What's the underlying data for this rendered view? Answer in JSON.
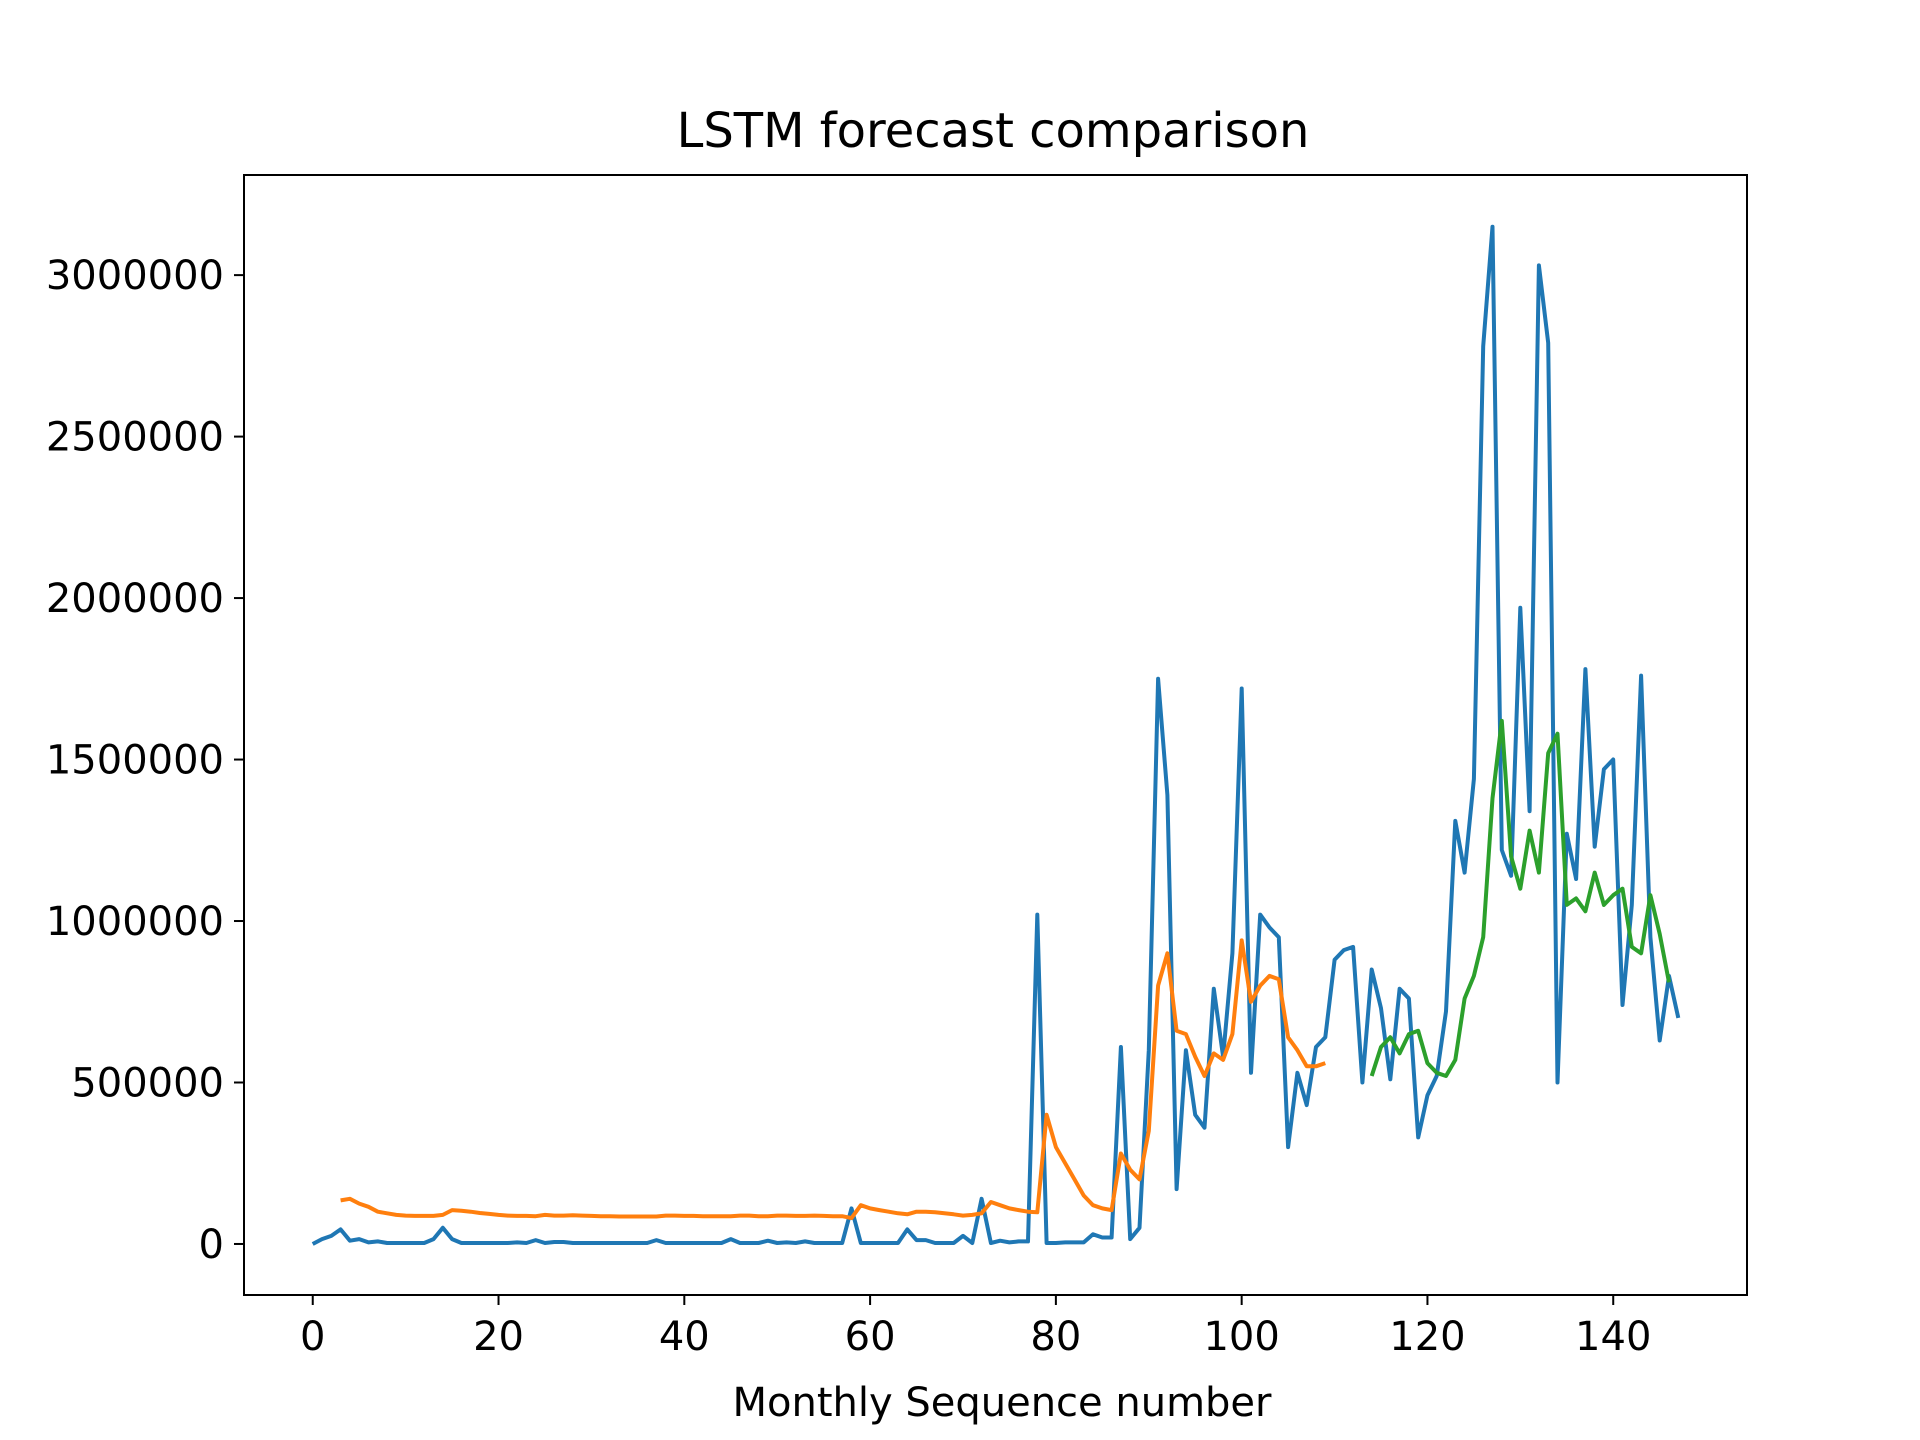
{
  "chart_data": {
    "type": "line",
    "title": "LSTM forecast comparison",
    "xlabel": "Monthly Sequence number",
    "ylabel": "",
    "xlim": [
      -7.4,
      154.4
    ],
    "ylim": [
      -158000,
      3310000
    ],
    "xticks": [
      0,
      20,
      40,
      60,
      80,
      100,
      120,
      140
    ],
    "yticks": [
      0,
      500000,
      1000000,
      1500000,
      2000000,
      2500000,
      3000000
    ],
    "grid": false,
    "legend": null,
    "series": [
      {
        "color": "#1f77b4",
        "x": [
          0,
          1,
          2,
          3,
          4,
          5,
          6,
          7,
          8,
          9,
          10,
          11,
          12,
          13,
          14,
          15,
          16,
          17,
          18,
          19,
          20,
          21,
          22,
          23,
          24,
          25,
          26,
          27,
          28,
          29,
          30,
          31,
          32,
          33,
          34,
          35,
          36,
          37,
          38,
          39,
          40,
          41,
          42,
          43,
          44,
          45,
          46,
          47,
          48,
          49,
          50,
          51,
          52,
          53,
          54,
          55,
          56,
          57,
          58,
          59,
          60,
          61,
          62,
          63,
          64,
          65,
          66,
          67,
          68,
          69,
          70,
          71,
          72,
          73,
          74,
          75,
          76,
          77,
          78,
          79,
          80,
          81,
          82,
          83,
          84,
          85,
          86,
          87,
          88,
          89,
          90,
          91,
          92,
          93,
          94,
          95,
          96,
          97,
          98,
          99,
          100,
          101,
          102,
          103,
          104,
          105,
          106,
          107,
          108,
          109,
          110,
          111,
          112,
          113,
          114,
          115,
          116,
          117,
          118,
          119,
          120,
          121,
          122,
          123,
          124,
          125,
          126,
          127,
          128,
          129,
          130,
          131,
          132,
          133,
          134,
          135,
          136,
          137,
          138,
          139,
          140,
          141,
          142,
          143,
          144,
          145,
          146,
          147
        ],
        "y": [
          0,
          15000,
          25000,
          45000,
          10000,
          15000,
          5000,
          8000,
          3000,
          3000,
          3000,
          3000,
          3000,
          15000,
          50000,
          15000,
          3000,
          3000,
          3000,
          3000,
          3000,
          3000,
          5000,
          3000,
          12000,
          3000,
          6000,
          6000,
          3000,
          3000,
          3000,
          3000,
          3000,
          3000,
          3000,
          3000,
          3000,
          12000,
          3000,
          3000,
          3000,
          3000,
          3000,
          3000,
          3000,
          15000,
          3000,
          3000,
          3000,
          10000,
          3000,
          5000,
          3000,
          8000,
          3000,
          3000,
          3000,
          3000,
          110000,
          3000,
          3000,
          3000,
          3000,
          3000,
          45000,
          12000,
          12000,
          3000,
          3000,
          3000,
          25000,
          3000,
          140000,
          3000,
          10000,
          5000,
          8000,
          8000,
          1020000,
          3000,
          3000,
          5000,
          5000,
          5000,
          30000,
          20000,
          20000,
          610000,
          15000,
          50000,
          600000,
          1750000,
          1390000,
          170000,
          600000,
          400000,
          360000,
          790000,
          580000,
          900000,
          1720000,
          530000,
          1020000,
          980000,
          950000,
          300000,
          530000,
          430000,
          610000,
          640000,
          880000,
          910000,
          920000,
          500000,
          850000,
          730000,
          510000,
          790000,
          760000,
          330000,
          460000,
          520000,
          720000,
          1310000,
          1150000,
          1440000,
          2780000,
          3150000,
          1220000,
          1140000,
          1970000,
          1340000,
          3030000,
          2790000,
          500000,
          1270000,
          1130000,
          1780000,
          1230000,
          1470000,
          1500000,
          740000,
          1050000,
          1760000,
          950000,
          630000,
          830000,
          700000
        ]
      },
      {
        "color": "#ff7f0e",
        "x": [
          3,
          4,
          5,
          6,
          7,
          8,
          9,
          10,
          11,
          12,
          13,
          14,
          15,
          16,
          17,
          18,
          19,
          20,
          21,
          22,
          23,
          24,
          25,
          26,
          27,
          28,
          29,
          30,
          31,
          32,
          33,
          34,
          35,
          36,
          37,
          38,
          39,
          40,
          41,
          42,
          43,
          44,
          45,
          46,
          47,
          48,
          49,
          50,
          51,
          52,
          53,
          54,
          55,
          56,
          57,
          58,
          59,
          60,
          61,
          62,
          63,
          64,
          65,
          66,
          67,
          68,
          69,
          70,
          71,
          72,
          73,
          74,
          75,
          76,
          77,
          78,
          79,
          80,
          81,
          82,
          83,
          84,
          85,
          86,
          87,
          88,
          89,
          90,
          91,
          92,
          93,
          94,
          95,
          96,
          97,
          98,
          99,
          100,
          101,
          102,
          103,
          104,
          105,
          106,
          107,
          108,
          109
        ],
        "y": [
          135000,
          140000,
          125000,
          115000,
          100000,
          95000,
          90000,
          88000,
          87000,
          87000,
          87000,
          90000,
          105000,
          103000,
          100000,
          96000,
          93000,
          90000,
          88000,
          87000,
          87000,
          86000,
          90000,
          88000,
          88000,
          89000,
          88000,
          87000,
          86000,
          86000,
          85000,
          85000,
          85000,
          85000,
          85000,
          88000,
          88000,
          87000,
          87000,
          86000,
          86000,
          86000,
          86000,
          88000,
          88000,
          86000,
          86000,
          88000,
          88000,
          87000,
          87000,
          88000,
          87000,
          86000,
          86000,
          80000,
          120000,
          110000,
          105000,
          100000,
          95000,
          92000,
          100000,
          100000,
          98000,
          95000,
          92000,
          88000,
          90000,
          95000,
          130000,
          120000,
          110000,
          105000,
          100000,
          98000,
          400000,
          300000,
          250000,
          200000,
          150000,
          120000,
          110000,
          105000,
          280000,
          230000,
          200000,
          350000,
          800000,
          900000,
          660000,
          650000,
          580000,
          520000,
          590000,
          570000,
          650000,
          940000,
          750000,
          800000,
          830000,
          820000,
          640000,
          600000,
          550000,
          550000,
          560000
        ]
      },
      {
        "color": "#2ca02c",
        "x": [
          114,
          115,
          116,
          117,
          118,
          119,
          120,
          121,
          122,
          123,
          124,
          125,
          126,
          127,
          128,
          129,
          130,
          131,
          132,
          133,
          134,
          135,
          136,
          137,
          138,
          139,
          140,
          141,
          142,
          143,
          144,
          145,
          146
        ],
        "y": [
          520000,
          610000,
          640000,
          590000,
          650000,
          660000,
          560000,
          530000,
          520000,
          570000,
          760000,
          830000,
          950000,
          1380000,
          1620000,
          1200000,
          1100000,
          1280000,
          1150000,
          1520000,
          1580000,
          1050000,
          1070000,
          1030000,
          1150000,
          1050000,
          1080000,
          1100000,
          920000,
          900000,
          1080000,
          960000,
          810000
        ]
      }
    ]
  }
}
